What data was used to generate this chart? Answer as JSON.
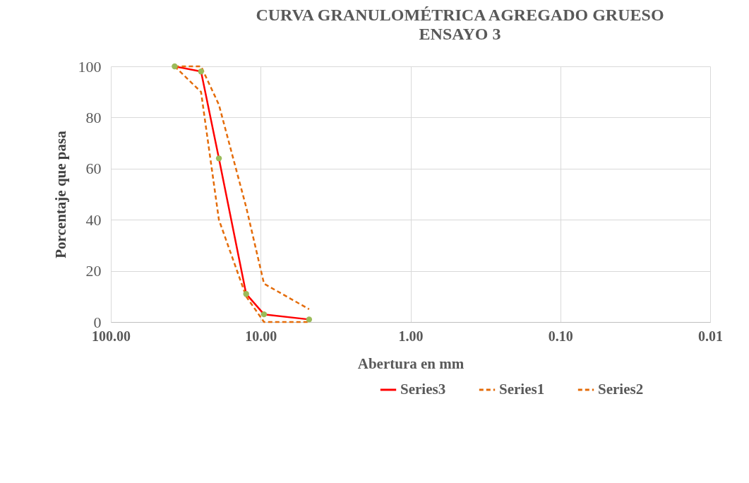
{
  "chart_data": {
    "type": "line",
    "title": "CURVA GRANULOMÉTRICA AGREGADO  GRUESO",
    "subtitle": "ENSAYO 3",
    "xlabel": "Abertura en mm",
    "ylabel": "Porcentaje que pasa",
    "x": [
      37.5,
      25,
      19,
      12.5,
      9.5,
      4.75
    ],
    "series": [
      {
        "name": "Series3",
        "color": "#ff0000",
        "values": [
          100,
          98,
          64,
          11,
          3,
          1
        ],
        "marker": "circle",
        "colors": [
          "#9bbb59",
          "#9bbb59",
          "#9bbb59",
          "#9bbb59",
          "#9bbb59",
          "#9bbb59"
        ],
        "line_style": "solid"
      },
      {
        "name": "Series1",
        "color": "#e46c0a",
        "values": [
          100,
          90,
          40,
          10,
          0,
          0
        ],
        "line_style": "dashed"
      },
      {
        "name": "Series2",
        "color": "#e46c0a",
        "values": [
          100,
          100,
          85,
          45,
          15,
          5
        ],
        "line_style": "dashed"
      }
    ],
    "log": "x",
    "xlim": [
      100,
      0.01
    ],
    "xticks": [
      {
        "value": 100,
        "label": "100.00"
      },
      {
        "value": 10,
        "label": "10.00"
      },
      {
        "value": 1,
        "label": "1.00"
      },
      {
        "value": 0.1,
        "label": "0.10"
      },
      {
        "value": 0.01,
        "label": "0.01"
      }
    ],
    "ylim": [
      0,
      100
    ],
    "yticks": [
      0,
      20,
      40,
      60,
      80,
      100
    ],
    "grid": true,
    "legend": "bottom"
  }
}
